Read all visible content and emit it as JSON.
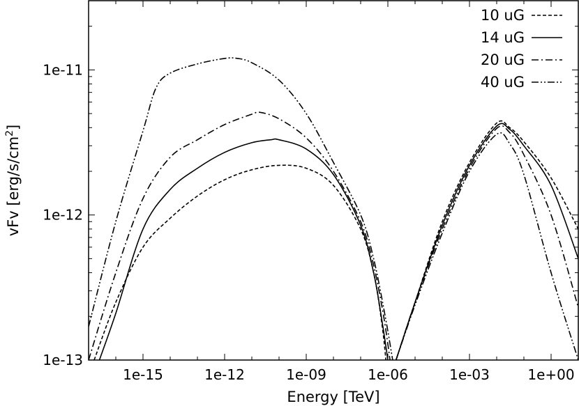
{
  "chart_data": {
    "type": "line",
    "xlabel": "Energy [TeV]",
    "ylabel_main": "vFv [erg/s/cm",
    "ylabel_sup": "2",
    "ylabel_close": "]",
    "xscale": "log",
    "yscale": "log",
    "xlim": [
      1e-17,
      10
    ],
    "ylim": [
      1e-13,
      3e-11
    ],
    "grid": false,
    "legend_position": "top-right",
    "x_ticks": [
      {
        "value": 1e-15,
        "label": "1e-15"
      },
      {
        "value": 1e-12,
        "label": "1e-12"
      },
      {
        "value": 1e-09,
        "label": "1e-09"
      },
      {
        "value": 1e-06,
        "label": "1e-06"
      },
      {
        "value": 0.001,
        "label": "1e-03"
      },
      {
        "value": 1,
        "label": "1e+00"
      }
    ],
    "y_ticks": [
      {
        "value": 1e-13,
        "label": "1e-13"
      },
      {
        "value": 1e-12,
        "label": "1e-12"
      },
      {
        "value": 1e-11,
        "label": "1e-11"
      }
    ],
    "series": [
      {
        "name": "10 uG",
        "dash": "dashed",
        "synchrotron": [
          [
            1.6e-17,
            1e-13
          ],
          [
            1e-16,
            2.5e-13
          ],
          [
            1e-15,
            6e-13
          ],
          [
            1e-14,
            9.5e-13
          ],
          [
            1e-13,
            1.35e-12
          ],
          [
            1e-12,
            1.75e-12
          ],
          [
            1e-11,
            2.05e-12
          ],
          [
            1e-10,
            2.2e-12
          ],
          [
            1e-09,
            2.1e-12
          ],
          [
            1e-08,
            1.6e-12
          ],
          [
            1e-07,
            8e-13
          ],
          [
            3e-07,
            4e-13
          ],
          [
            6e-07,
            1.8e-13
          ],
          [
            8.5e-07,
            1e-13
          ]
        ],
        "inverse_compton": [
          [
            2e-06,
            1e-13
          ],
          [
            1e-05,
            2.5e-13
          ],
          [
            0.0001,
            9e-13
          ],
          [
            0.001,
            2.3e-12
          ],
          [
            0.01,
            4.3e-12
          ],
          [
            0.03,
            4e-12
          ],
          [
            0.1,
            3.2e-12
          ],
          [
            1,
            1.8e-12
          ],
          [
            10,
            8e-13
          ]
        ]
      },
      {
        "name": "14 uG",
        "dash": "solid",
        "synchrotron": [
          [
            2.5e-17,
            1e-13
          ],
          [
            1e-16,
            2.1e-13
          ],
          [
            1e-15,
            8e-13
          ],
          [
            1e-14,
            1.5e-12
          ],
          [
            1e-13,
            2.1e-12
          ],
          [
            1e-12,
            2.7e-12
          ],
          [
            1e-11,
            3.15e-12
          ],
          [
            5e-11,
            3.3e-12
          ],
          [
            1e-10,
            3.3e-12
          ],
          [
            1e-09,
            2.85e-12
          ],
          [
            1e-08,
            1.9e-12
          ],
          [
            1e-07,
            8.5e-13
          ],
          [
            3e-07,
            4e-13
          ],
          [
            6e-07,
            1.9e-13
          ],
          [
            1e-06,
            1e-13
          ]
        ],
        "inverse_compton": [
          [
            2e-06,
            1e-13
          ],
          [
            1e-05,
            2.5e-13
          ],
          [
            0.0001,
            8.5e-13
          ],
          [
            0.001,
            2.2e-12
          ],
          [
            0.01,
            4.1e-12
          ],
          [
            0.03,
            3.9e-12
          ],
          [
            0.1,
            3e-12
          ],
          [
            1,
            1.6e-12
          ],
          [
            10,
            5e-13
          ]
        ]
      },
      {
        "name": "20 uG",
        "dash": "dashdot",
        "synchrotron": [
          [
            1e-17,
            1e-13
          ],
          [
            1e-16,
            4e-13
          ],
          [
            1e-15,
            1.3e-12
          ],
          [
            1e-14,
            2.5e-12
          ],
          [
            1e-13,
            3.3e-12
          ],
          [
            1e-12,
            4.2e-12
          ],
          [
            1e-11,
            4.95e-12
          ],
          [
            2e-11,
            5.1e-12
          ],
          [
            1e-10,
            4.6e-12
          ],
          [
            1e-09,
            3.4e-12
          ],
          [
            1e-08,
            2e-12
          ],
          [
            1e-07,
            9e-13
          ],
          [
            3e-07,
            4.5e-13
          ],
          [
            7e-07,
            2e-13
          ],
          [
            1.2e-06,
            1e-13
          ]
        ],
        "inverse_compton": [
          [
            2e-06,
            1e-13
          ],
          [
            1e-05,
            2.5e-13
          ],
          [
            0.0001,
            8e-13
          ],
          [
            0.001,
            2.1e-12
          ],
          [
            0.01,
            3.95e-12
          ],
          [
            0.03,
            3.7e-12
          ],
          [
            0.1,
            2.6e-12
          ],
          [
            1,
            1e-12
          ],
          [
            10,
            2.3e-13
          ]
        ]
      },
      {
        "name": "40 uG",
        "dash": "dashdotdot",
        "synchrotron": [
          [
            1e-17,
            1.7e-13
          ],
          [
            1e-16,
            9e-13
          ],
          [
            1e-15,
            3.8e-12
          ],
          [
            3e-15,
            7.5e-12
          ],
          [
            1e-14,
            9.5e-12
          ],
          [
            1e-13,
            1.1e-11
          ],
          [
            1e-12,
            1.2e-11
          ],
          [
            3e-12,
            1.2e-11
          ],
          [
            1e-11,
            1.12e-11
          ],
          [
            1e-10,
            8.5e-12
          ],
          [
            1e-09,
            5e-12
          ],
          [
            1e-08,
            2.3e-12
          ],
          [
            1e-07,
            1e-12
          ],
          [
            3e-07,
            5e-13
          ],
          [
            8e-07,
            2e-13
          ],
          [
            1.5e-06,
            1e-13
          ]
        ],
        "inverse_compton": [
          [
            2e-06,
            1e-13
          ],
          [
            1e-05,
            2.4e-13
          ],
          [
            0.0001,
            7.5e-13
          ],
          [
            0.001,
            2e-12
          ],
          [
            0.01,
            3.6e-12
          ],
          [
            0.03,
            3.1e-12
          ],
          [
            0.1,
            1.9e-12
          ],
          [
            1,
            4e-13
          ],
          [
            10,
            1e-13
          ]
        ]
      }
    ]
  }
}
